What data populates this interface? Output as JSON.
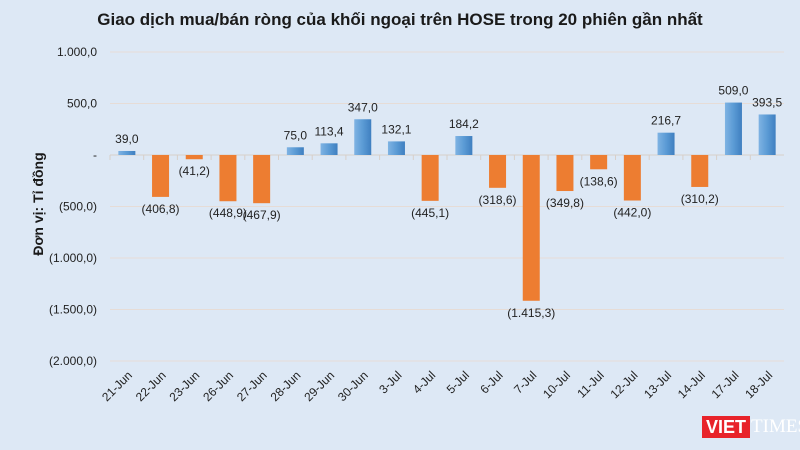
{
  "chart_data": {
    "type": "bar",
    "title": "Giao dịch mua/bán ròng của khối ngoại trên HOSE trong 20 phiên gần nhất",
    "ylabel": "Đơn vị: Tỉ đồng",
    "xlabel": "",
    "ylim": [
      -2000,
      1000
    ],
    "yticks": [
      1000,
      500,
      0,
      -500,
      -1000,
      -1500,
      -2000
    ],
    "ytick_labels": [
      "1.000,0",
      "500,0",
      "-",
      "(500,0)",
      "(1.000,0)",
      "(1.500,0)",
      "(2.000,0)"
    ],
    "grid": true,
    "categories": [
      "21-Jun",
      "22-Jun",
      "23-Jun",
      "26-Jun",
      "27-Jun",
      "28-Jun",
      "29-Jun",
      "30-Jun",
      "3-Jul",
      "4-Jul",
      "5-Jul",
      "6-Jul",
      "7-Jul",
      "10-Jul",
      "11-Jul",
      "12-Jul",
      "13-Jul",
      "14-Jul",
      "17-Jul",
      "18-Jul"
    ],
    "values": [
      39.0,
      -406.8,
      -41.2,
      -448.9,
      -467.9,
      75.0,
      113.4,
      347.0,
      132.1,
      -445.1,
      184.2,
      -318.6,
      -1415.3,
      -349.8,
      -138.6,
      -442.0,
      216.7,
      -310.2,
      509.0,
      393.5
    ],
    "data_labels": [
      "39,0",
      "(406,8)",
      "(41,2)",
      "(448,9)",
      "(467,9)",
      "75,0",
      "113,4",
      "347,0",
      "132,1",
      "(445,1)",
      "184,2",
      "(318,6)",
      "(1.415,3)",
      "(349,8)",
      "(138,6)",
      "(442,0)",
      "216,7",
      "(310,2)",
      "509,0",
      "393,5"
    ],
    "colors": {
      "positive": "#5b9bd5",
      "negative": "#ed7d31",
      "background": "#dde8f5"
    }
  },
  "logo": {
    "part1": "VIET",
    "part2": "TIMES"
  }
}
